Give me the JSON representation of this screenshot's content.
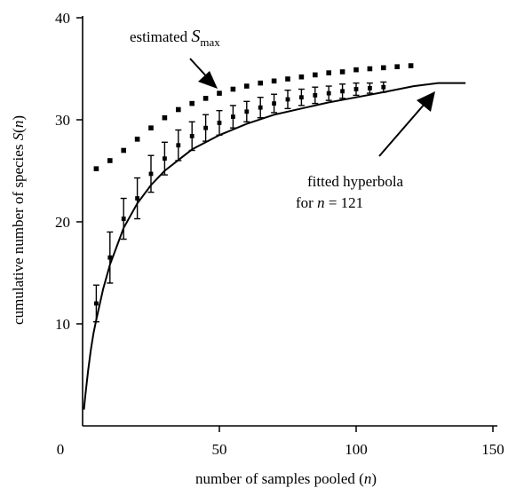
{
  "chart_data": {
    "type": "scatter",
    "xlabel": "number of samples pooled (n)",
    "ylabel": "cumulative number of species S(n)",
    "xlim": [
      0,
      150
    ],
    "ylim": [
      0,
      40
    ],
    "x_ticks": [
      0,
      50,
      100,
      150
    ],
    "x_tick_labels": [
      "0",
      "50",
      "100",
      "150"
    ],
    "y_ticks": [
      10,
      20,
      30,
      40
    ],
    "y_tick_labels": [
      "10",
      "20",
      "30",
      "40"
    ],
    "grid": false,
    "series": [
      {
        "name": "estimated Smax",
        "kind": "points",
        "x": [
          5,
          10,
          15,
          20,
          25,
          30,
          35,
          40,
          45,
          50,
          55,
          60,
          65,
          70,
          75,
          80,
          85,
          90,
          95,
          100,
          105,
          110,
          115,
          120
        ],
        "y": [
          25.2,
          26.0,
          27.0,
          28.1,
          29.2,
          30.2,
          31.0,
          31.6,
          32.1,
          32.6,
          33.0,
          33.3,
          33.6,
          33.8,
          34.0,
          34.2,
          34.4,
          34.6,
          34.7,
          34.9,
          35.0,
          35.1,
          35.2,
          35.3
        ]
      },
      {
        "kind": "points-with-errorbars",
        "x": [
          5,
          10,
          15,
          20,
          25,
          30,
          35,
          40,
          45,
          50,
          55,
          60,
          65,
          70,
          75,
          80,
          85,
          90,
          95,
          100,
          105,
          110
        ],
        "y": [
          12.0,
          16.5,
          20.3,
          22.3,
          24.7,
          26.2,
          27.5,
          28.4,
          29.2,
          29.7,
          30.3,
          30.8,
          31.2,
          31.6,
          32.0,
          32.2,
          32.4,
          32.6,
          32.8,
          33.0,
          33.1,
          33.2
        ],
        "err": [
          1.8,
          2.5,
          2.0,
          2.0,
          1.8,
          1.6,
          1.5,
          1.4,
          1.3,
          1.2,
          1.1,
          1.0,
          1.0,
          0.9,
          0.9,
          0.8,
          0.8,
          0.7,
          0.7,
          0.6,
          0.5,
          0.5
        ]
      },
      {
        "name": "fitted hyperbola",
        "kind": "line",
        "x": [
          0.5,
          1,
          2,
          3,
          4,
          5,
          7.5,
          10,
          15,
          20,
          25,
          30,
          40,
          50,
          60,
          70,
          80,
          90,
          100,
          110,
          121,
          130,
          140
        ],
        "y": [
          1.6,
          3.0,
          5.4,
          7.4,
          9.1,
          10.4,
          13.4,
          15.8,
          19.4,
          21.8,
          23.6,
          25.0,
          27.1,
          28.5,
          29.6,
          30.5,
          31.1,
          31.7,
          32.2,
          32.7,
          33.3,
          33.6,
          33.6
        ]
      }
    ],
    "annotations": [
      {
        "id": "smax",
        "text": "estimated ",
        "math_var": "S",
        "subscript": "max"
      },
      {
        "id": "hyperbola",
        "line1": "fitted hyperbola",
        "line2_prefix": "for ",
        "line2_var": "n",
        "line2_suffix": " = 121"
      }
    ]
  }
}
